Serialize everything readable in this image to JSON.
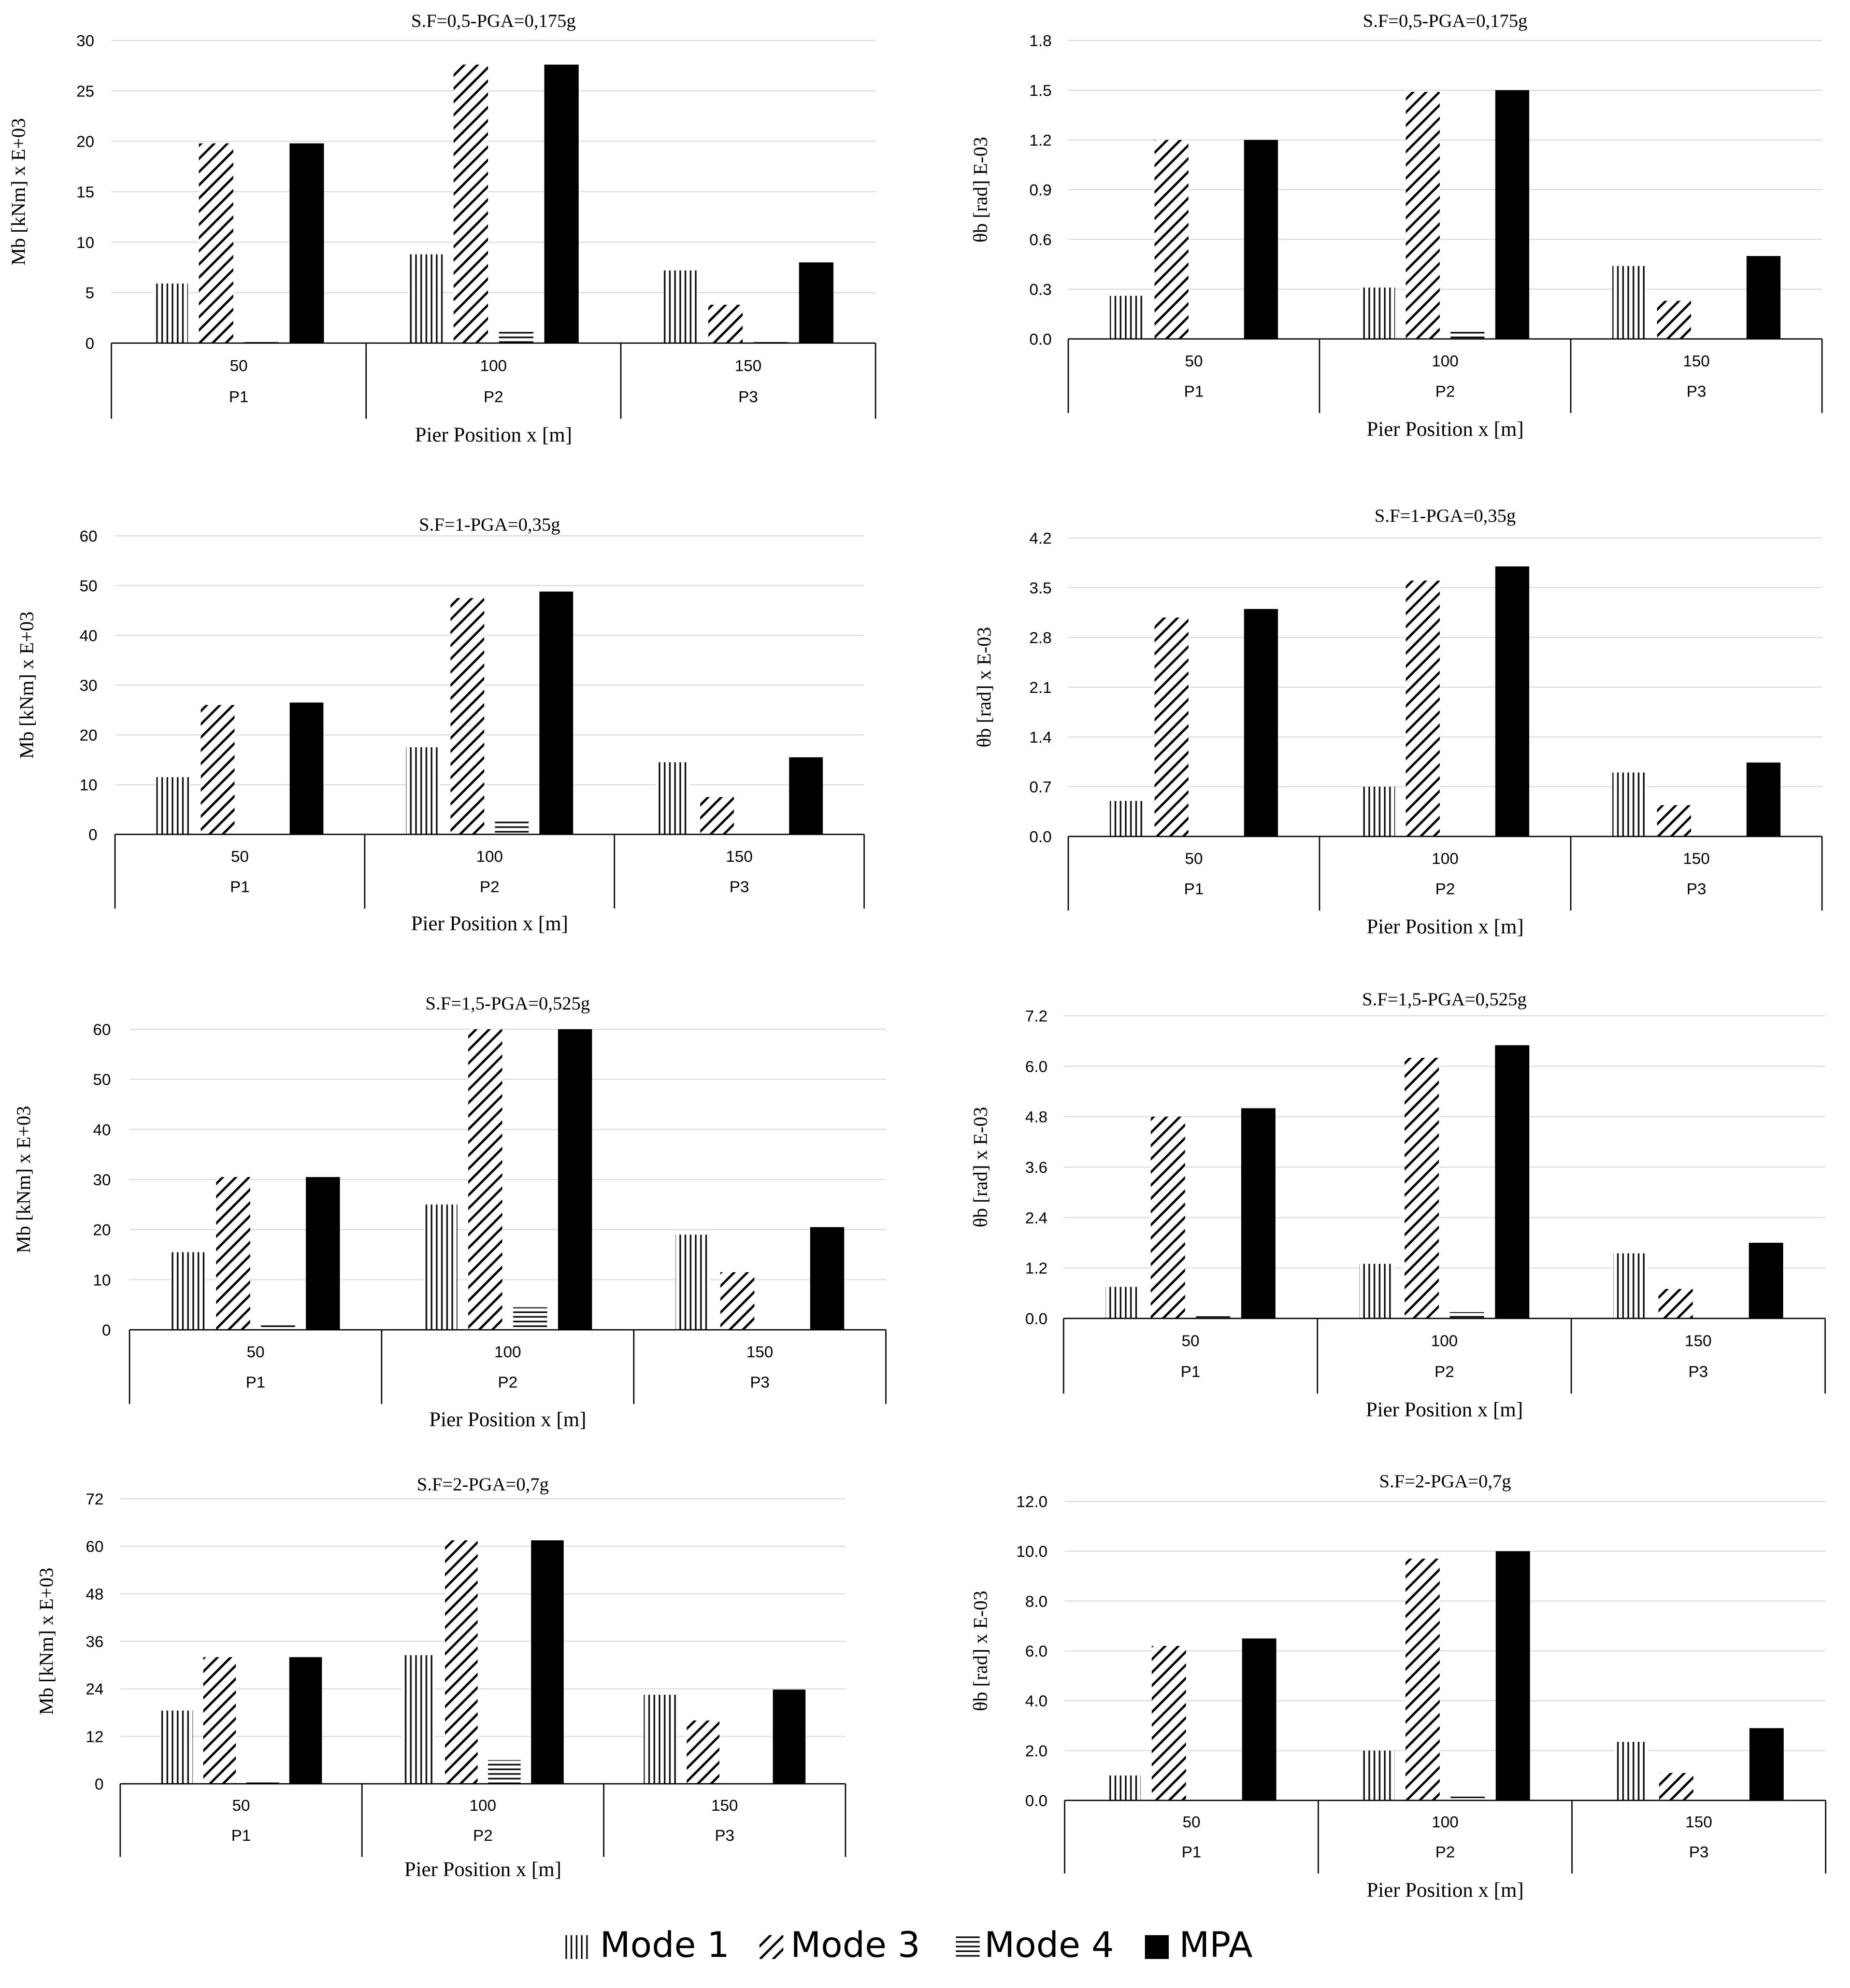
{
  "colors": {
    "mpa": "#000000",
    "grid": "#d9d9d9",
    "axis": "#000000"
  },
  "legend": [
    {
      "name": "Mode 1",
      "pattern": "vertical-hatch"
    },
    {
      "name": "Mode 3",
      "pattern": "diagonal-hatch"
    },
    {
      "name": "Mode 4",
      "pattern": "horizontal-hatch"
    },
    {
      "name": "MPA",
      "pattern": "solid"
    }
  ],
  "chart_data": [
    {
      "type": "bar",
      "title": "S.F=0,5-PGA=0,175g",
      "ylabel": "Mb [kNm] x E+03",
      "xlabel": "Pier Position x [m]",
      "categories": [
        "50",
        "100",
        "150"
      ],
      "groups": [
        "P1",
        "P2",
        "P3"
      ],
      "ylim": [
        0,
        30
      ],
      "yticks": [
        "0",
        "5",
        "10",
        "15",
        "20",
        "25",
        "30"
      ],
      "series": [
        {
          "name": "Mode 1",
          "values": [
            5.9,
            8.8,
            7.2
          ]
        },
        {
          "name": "Mode 3",
          "values": [
            19.8,
            27.6,
            3.8
          ]
        },
        {
          "name": "Mode 4",
          "values": [
            0.1,
            1.1,
            0.1
          ]
        },
        {
          "name": "MPA",
          "values": [
            19.8,
            27.6,
            8.0
          ]
        }
      ]
    },
    {
      "type": "bar",
      "title": "S.F=0,5-PGA=0,175g",
      "ylabel": "θb [rad] E-03",
      "xlabel": "Pier Position x [m]",
      "categories": [
        "50",
        "100",
        "150"
      ],
      "groups": [
        "P1",
        "P2",
        "P3"
      ],
      "ylim": [
        0,
        1.8
      ],
      "yticks": [
        "0.0",
        "0.3",
        "0.6",
        "0.9",
        "1.2",
        "1.5",
        "1.8"
      ],
      "series": [
        {
          "name": "Mode 1",
          "values": [
            0.26,
            0.31,
            0.44
          ]
        },
        {
          "name": "Mode 3",
          "values": [
            1.2,
            1.49,
            0.23
          ]
        },
        {
          "name": "Mode 4",
          "values": [
            0.0,
            0.05,
            0.0
          ]
        },
        {
          "name": "MPA",
          "values": [
            1.2,
            1.5,
            0.5
          ]
        }
      ]
    },
    {
      "type": "bar",
      "title": "S.F=1-PGA=0,35g",
      "ylabel": "Mb [kNm] x E+03",
      "xlabel": "Pier Position x [m]",
      "categories": [
        "50",
        "100",
        "150"
      ],
      "groups": [
        "P1",
        "P2",
        "P3"
      ],
      "ylim": [
        0,
        60
      ],
      "yticks": [
        "0",
        "10",
        "20",
        "30",
        "40",
        "50",
        "60"
      ],
      "series": [
        {
          "name": "Mode 1",
          "values": [
            11.5,
            17.5,
            14.5
          ]
        },
        {
          "name": "Mode 3",
          "values": [
            26.0,
            47.5,
            7.5
          ]
        },
        {
          "name": "Mode 4",
          "values": [
            0.0,
            3.0,
            0.0
          ]
        },
        {
          "name": "MPA",
          "values": [
            26.5,
            48.8,
            15.5
          ]
        }
      ]
    },
    {
      "type": "bar",
      "title": "S.F=1-PGA=0,35g",
      "ylabel": "θb [rad] x E-03",
      "xlabel": "Pier Position x [m]",
      "categories": [
        "50",
        "100",
        "150"
      ],
      "groups": [
        "P1",
        "P2",
        "P3"
      ],
      "ylim": [
        0,
        4.2
      ],
      "yticks": [
        "0.0",
        "0.7",
        "1.4",
        "2.1",
        "2.8",
        "3.5",
        "4.2"
      ],
      "series": [
        {
          "name": "Mode 1",
          "values": [
            0.5,
            0.7,
            0.9
          ]
        },
        {
          "name": "Mode 3",
          "values": [
            3.08,
            3.6,
            0.44
          ]
        },
        {
          "name": "Mode 4",
          "values": [
            0.0,
            0.0,
            0.0
          ]
        },
        {
          "name": "MPA",
          "values": [
            3.2,
            3.8,
            1.04
          ]
        }
      ]
    },
    {
      "type": "bar",
      "title": "S.F=1,5-PGA=0,525g",
      "ylabel": "Mb [kNm] x E+03",
      "xlabel": "Pier Position x [m]",
      "categories": [
        "50",
        "100",
        "150"
      ],
      "groups": [
        "P1",
        "P2",
        "P3"
      ],
      "ylim": [
        0,
        60
      ],
      "yticks": [
        "0",
        "10",
        "20",
        "30",
        "40",
        "50",
        "60"
      ],
      "series": [
        {
          "name": "Mode 1",
          "values": [
            15.5,
            25.0,
            19.0
          ]
        },
        {
          "name": "Mode 3",
          "values": [
            30.5,
            60.0,
            11.5
          ]
        },
        {
          "name": "Mode 4",
          "values": [
            1.0,
            4.5,
            0.0
          ]
        },
        {
          "name": "MPA",
          "values": [
            30.5,
            60.0,
            20.5
          ]
        }
      ]
    },
    {
      "type": "bar",
      "title": "S.F=1,5-PGA=0,525g",
      "ylabel": "θb [rad] x E-03",
      "xlabel": "Pier Position x [m]",
      "categories": [
        "50",
        "100",
        "150"
      ],
      "groups": [
        "P1",
        "P2",
        "P3"
      ],
      "ylim": [
        0,
        7.2
      ],
      "yticks": [
        "0.0",
        "1.2",
        "2.4",
        "3.6",
        "4.8",
        "6.0",
        "7.2"
      ],
      "series": [
        {
          "name": "Mode 1",
          "values": [
            0.75,
            1.3,
            1.55
          ]
        },
        {
          "name": "Mode 3",
          "values": [
            4.8,
            6.2,
            0.7
          ]
        },
        {
          "name": "Mode 4",
          "values": [
            0.05,
            0.15,
            0.0
          ]
        },
        {
          "name": "MPA",
          "values": [
            5.0,
            6.5,
            1.8
          ]
        }
      ]
    },
    {
      "type": "bar",
      "title": "S.F=2-PGA=0,7g",
      "ylabel": "Mb [kNm] x E+03",
      "xlabel": "Pier Position x [m]",
      "categories": [
        "50",
        "100",
        "150"
      ],
      "groups": [
        "P1",
        "P2",
        "P3"
      ],
      "ylim": [
        0,
        72
      ],
      "yticks": [
        "0",
        "12",
        "24",
        "36",
        "48",
        "60",
        "72"
      ],
      "series": [
        {
          "name": "Mode 1",
          "values": [
            18.5,
            32.5,
            22.5
          ]
        },
        {
          "name": "Mode 3",
          "values": [
            32.0,
            61.5,
            16.0
          ]
        },
        {
          "name": "Mode 4",
          "values": [
            1.0,
            6.0,
            0.0
          ]
        },
        {
          "name": "MPA",
          "values": [
            32.0,
            61.5,
            23.8
          ]
        }
      ]
    },
    {
      "type": "bar",
      "title": "S.F=2-PGA=0,7g",
      "ylabel": "θb [rad] x E-03",
      "xlabel": "Pier Position x [m]",
      "categories": [
        "50",
        "100",
        "150"
      ],
      "groups": [
        "P1",
        "P2",
        "P3"
      ],
      "ylim": [
        0,
        12
      ],
      "yticks": [
        "0.0",
        "2.0",
        "4.0",
        "6.0",
        "8.0",
        "10.0",
        "12.0"
      ],
      "series": [
        {
          "name": "Mode 1",
          "values": [
            1.0,
            2.0,
            2.35
          ]
        },
        {
          "name": "Mode 3",
          "values": [
            6.2,
            9.7,
            1.1
          ]
        },
        {
          "name": "Mode 4",
          "values": [
            0.0,
            0.15,
            0.0
          ]
        },
        {
          "name": "MPA",
          "values": [
            6.5,
            10.0,
            2.9
          ]
        }
      ]
    }
  ]
}
